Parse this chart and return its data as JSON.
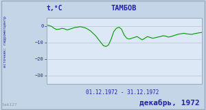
{
  "title": "ТАМБОВ",
  "ylabel": "t,°C",
  "xlabel_range": "01.12.1972 - 31.12.1972",
  "footer": "декабрь, 1972",
  "watermark": "lab127",
  "line_color": "#009900",
  "plot_bg_color": "#dce8f5",
  "outer_bg_color": "#c5d5e8",
  "grid_color": "#b0b8cc",
  "text_color": "#2020aa",
  "border_color": "#9aaabb",
  "side_label": "источник: гидрометцентр",
  "ylim": [
    -35,
    5
  ],
  "yticks": [
    0,
    -10,
    -20,
    -30
  ],
  "temperatures": [
    0.5,
    0.2,
    -0.3,
    -1.5,
    -2.2,
    -2.0,
    -1.5,
    -1.8,
    -2.5,
    -2.0,
    -1.5,
    -1.0,
    -0.8,
    -0.5,
    -0.8,
    -1.2,
    -2.0,
    -3.0,
    -4.5,
    -6.0,
    -8.0,
    -10.0,
    -12.0,
    -12.5,
    -11.5,
    -8.0,
    -3.5,
    -1.5,
    -0.8,
    -2.0,
    -5.5,
    -7.5,
    -8.0,
    -7.5,
    -7.0,
    -6.5,
    -7.5,
    -8.5,
    -7.5,
    -6.5,
    -7.0,
    -7.5,
    -7.2,
    -6.8,
    -6.5,
    -6.0,
    -6.2,
    -6.8,
    -6.5,
    -6.0,
    -5.5,
    -5.0,
    -4.8,
    -4.5,
    -4.8,
    -5.0,
    -5.2,
    -4.8,
    -4.5,
    -4.2,
    -4.0
  ]
}
